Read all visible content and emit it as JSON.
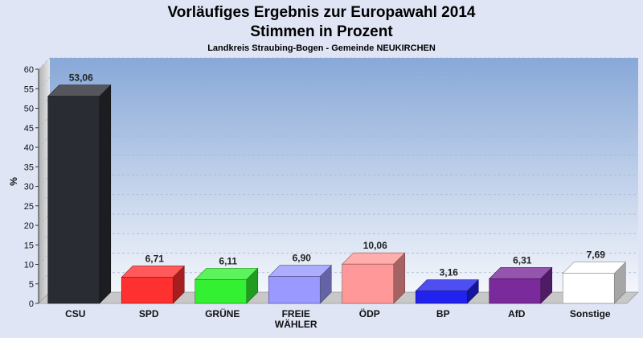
{
  "titles": {
    "line1": "Vorläufiges Ergebnis zur Europawahl 2014",
    "line2": "Stimmen in Prozent",
    "subtitle": "Landkreis Straubing-Bogen - Gemeinde NEUKIRCHEN"
  },
  "chart_data": {
    "type": "bar",
    "title": "Vorläufiges Ergebnis zur Europawahl 2014 Stimmen in Prozent",
    "subtitle": "Landkreis Straubing-Bogen - Gemeinde NEUKIRCHEN",
    "ylabel": "%",
    "xlabel": "",
    "ylim": [
      0,
      60
    ],
    "yticks": [
      0,
      5,
      10,
      15,
      20,
      25,
      30,
      35,
      40,
      45,
      50,
      55,
      60
    ],
    "grid": true,
    "legend": "none",
    "categories": [
      "CSU",
      "SPD",
      "GRÜNE",
      "FREIE WÄHLER",
      "ÖDP",
      "BP",
      "AfD",
      "Sonstige"
    ],
    "category_label_lines": [
      [
        "CSU"
      ],
      [
        "SPD"
      ],
      [
        "GRÜNE"
      ],
      [
        "FREIE",
        "WÄHLER"
      ],
      [
        "ÖDP"
      ],
      [
        "BP"
      ],
      [
        "AfD"
      ],
      [
        "Sonstige"
      ]
    ],
    "values": [
      53.06,
      6.71,
      6.11,
      6.9,
      10.06,
      3.16,
      6.31,
      7.69
    ],
    "value_labels": [
      "53,06",
      "6,71",
      "6,11",
      "6,90",
      "10,06",
      "3,16",
      "6,31",
      "7,69"
    ],
    "colors": [
      "#2a2c33",
      "#ff3030",
      "#33f033",
      "#9999ff",
      "#ff9999",
      "#2222ee",
      "#7a2a9a",
      "#ffffff"
    ]
  }
}
